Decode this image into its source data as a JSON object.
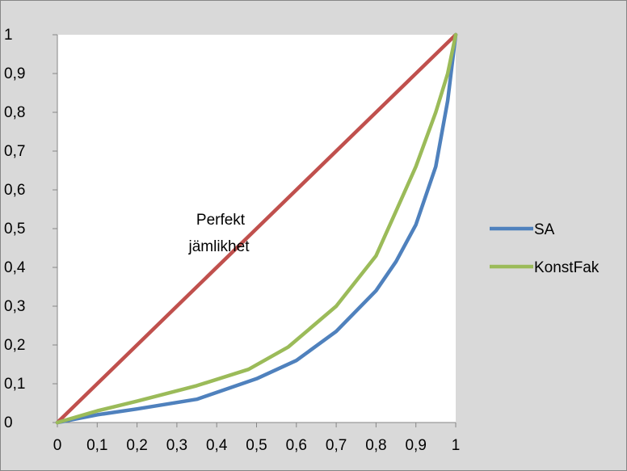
{
  "chart_data": {
    "type": "line",
    "xlim": [
      0,
      1
    ],
    "ylim": [
      0,
      1
    ],
    "x_ticks": [
      "0",
      "0,1",
      "0,2",
      "0,3",
      "0,4",
      "0,5",
      "0,6",
      "0,7",
      "0,8",
      "0,9",
      "1"
    ],
    "y_ticks": [
      "0",
      "0,1",
      "0,2",
      "0,3",
      "0,4",
      "0,5",
      "0,6",
      "0,7",
      "0,8",
      "0,9",
      "1"
    ],
    "grid": false,
    "legend_position": "right",
    "annotation": {
      "lines": [
        "Perfekt",
        "jämlikhet"
      ]
    },
    "series": [
      {
        "name": "",
        "color": "#C0504D",
        "x": [
          0,
          1
        ],
        "y": [
          0,
          1
        ]
      },
      {
        "name": "SA",
        "color": "#4F81BD",
        "x": [
          0,
          0.1,
          0.2,
          0.35,
          0.5,
          0.6,
          0.7,
          0.8,
          0.85,
          0.9,
          0.95,
          0.98,
          1.0
        ],
        "y": [
          0,
          0.02,
          0.035,
          0.06,
          0.113,
          0.16,
          0.235,
          0.34,
          0.415,
          0.51,
          0.66,
          0.83,
          1.0
        ]
      },
      {
        "name": "KonstFak",
        "color": "#9BBB59",
        "x": [
          0,
          0.1,
          0.2,
          0.35,
          0.48,
          0.58,
          0.7,
          0.8,
          0.85,
          0.9,
          0.95,
          0.98,
          1.0
        ],
        "y": [
          0,
          0.03,
          0.055,
          0.095,
          0.137,
          0.195,
          0.3,
          0.43,
          0.545,
          0.66,
          0.8,
          0.9,
          1.0
        ]
      }
    ]
  }
}
